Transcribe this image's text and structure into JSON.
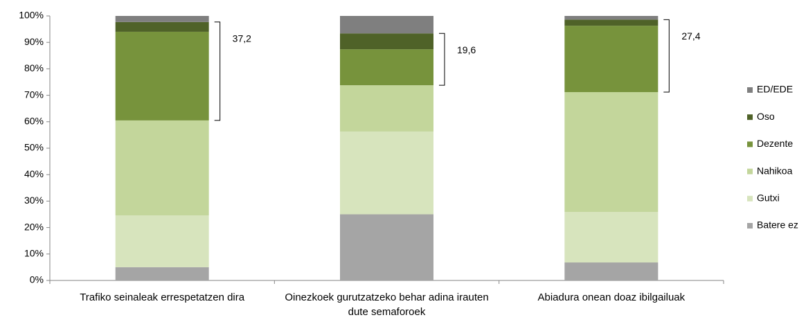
{
  "chart_data": {
    "type": "stacked_bar",
    "categories": [
      "Trafiko seinaleak errespetatzen dira",
      "Oinezkoek gurutzatzeko behar adina irauten dute semaforoek",
      "Abiadura onean doaz ibilgailuak"
    ],
    "series": [
      {
        "name": "Batere ez",
        "color": "#a5a5a5",
        "values": [
          5,
          25,
          6.8
        ]
      },
      {
        "name": "Gutxi",
        "color": "#d7e4bd",
        "values": [
          19.6,
          31.3,
          19.1
        ]
      },
      {
        "name": "Nahikoa",
        "color": "#c3d69b",
        "values": [
          35.9,
          17.5,
          45.3
        ]
      },
      {
        "name": "Dezente",
        "color": "#77933c",
        "values": [
          33.5,
          13.6,
          25.1
        ]
      },
      {
        "name": "Oso",
        "color": "#4f6228",
        "values": [
          3.7,
          6.0,
          2.3
        ]
      },
      {
        "name": "ED/EDE",
        "color": "#7f7f7f",
        "values": [
          2.3,
          6.6,
          1.4
        ]
      }
    ],
    "annotations": [
      "37,2",
      "19,6",
      "27,4"
    ],
    "ylim": [
      0,
      100
    ],
    "yticks": [
      {
        "value": 0,
        "label": "0%"
      },
      {
        "value": 10,
        "label": "10%"
      },
      {
        "value": 20,
        "label": "20%"
      },
      {
        "value": 30,
        "label": "30%"
      },
      {
        "value": 40,
        "label": "40%"
      },
      {
        "value": 50,
        "label": "50%"
      },
      {
        "value": 60,
        "label": "60%"
      },
      {
        "value": 70,
        "label": "70%"
      },
      {
        "value": 80,
        "label": "80%"
      },
      {
        "value": 90,
        "label": "90%"
      },
      {
        "value": 100,
        "label": "100%"
      }
    ],
    "legend": "right"
  }
}
